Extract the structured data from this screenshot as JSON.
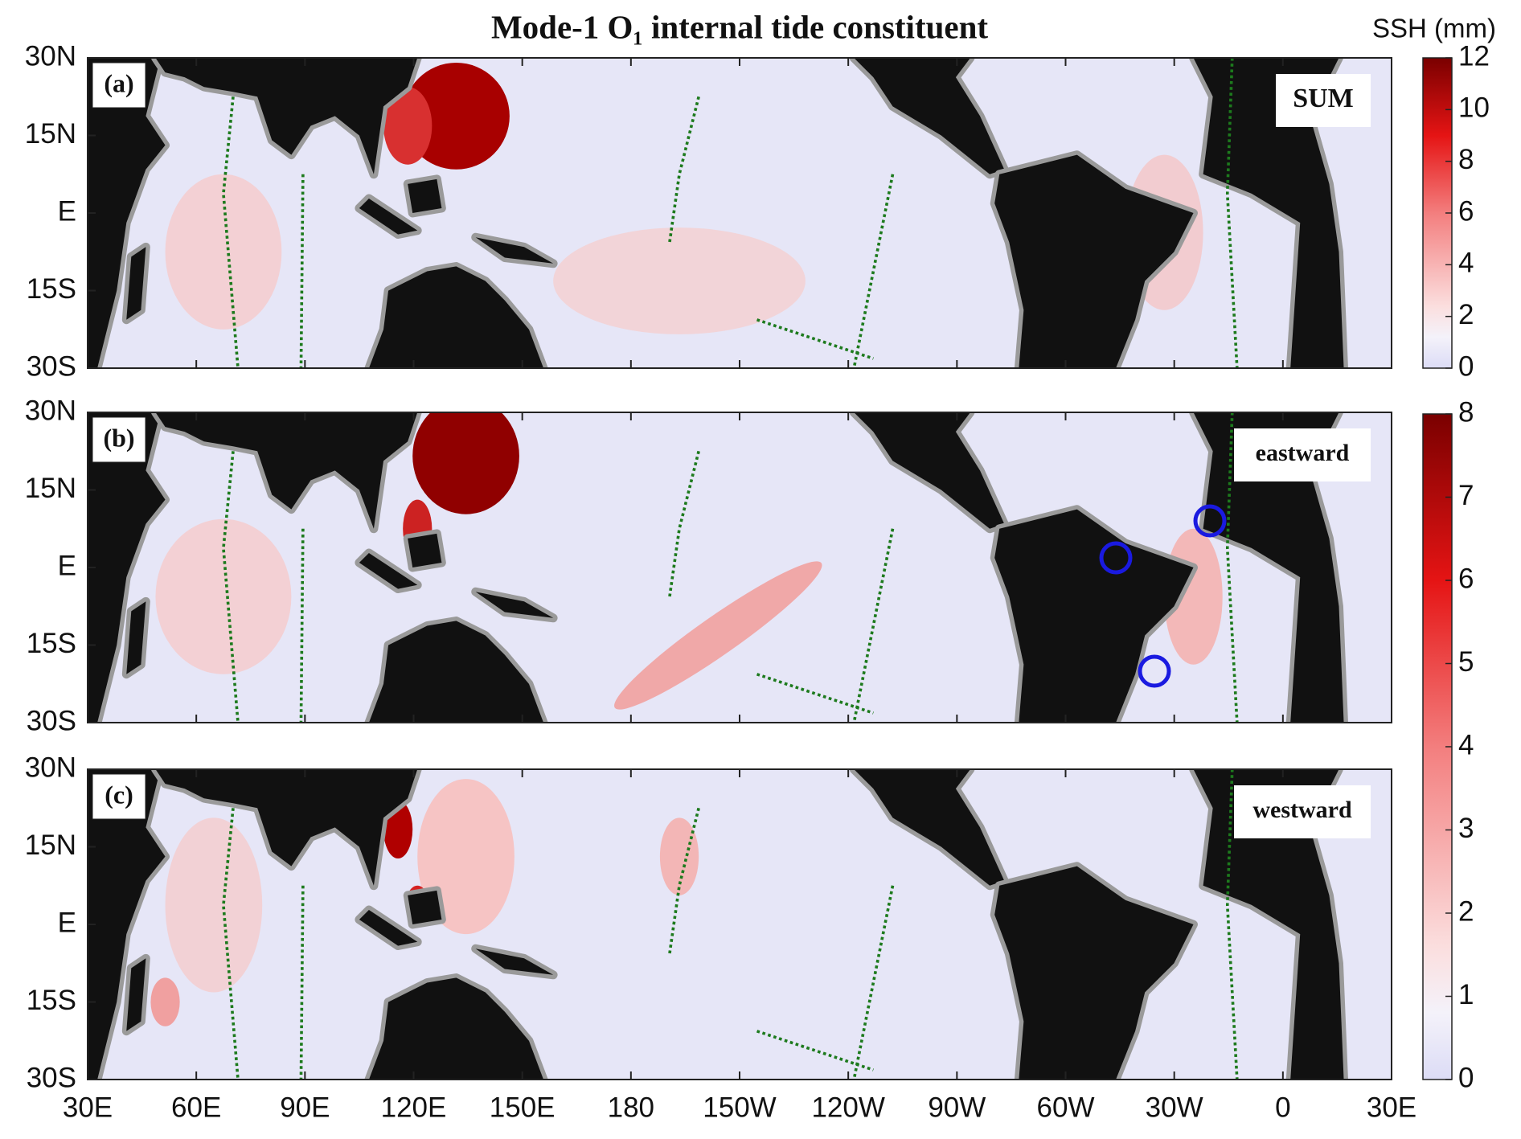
{
  "title": "Mode-1 O₁ internal tide constituent",
  "panels": [
    {
      "label": "(a)",
      "tag": "SUM"
    },
    {
      "label": "(b)",
      "tag": "eastward"
    },
    {
      "label": "(c)",
      "tag": "westward"
    }
  ],
  "map": {
    "xlim": [
      30,
      390
    ],
    "ylim": [
      -30,
      30
    ],
    "xticks": [
      {
        "value": 30,
        "label": "30E"
      },
      {
        "value": 60,
        "label": "60E"
      },
      {
        "value": 90,
        "label": "90E"
      },
      {
        "value": 120,
        "label": "120E"
      },
      {
        "value": 150,
        "label": "150E"
      },
      180,
      {
        "value": 210,
        "label": "150W"
      },
      {
        "value": 240,
        "label": "120W"
      },
      {
        "value": 270,
        "label": "90W"
      },
      {
        "value": 300,
        "label": "60W"
      },
      {
        "value": 330,
        "label": "30W"
      },
      {
        "value": 360,
        "label": "0"
      },
      {
        "value": 390,
        "label": "30E"
      }
    ],
    "yticks": [
      {
        "value": 30,
        "label": "30N"
      },
      {
        "value": 15,
        "label": "15N"
      },
      {
        "value": 0,
        "label": "E"
      },
      {
        "value": -15,
        "label": "15S"
      },
      {
        "value": -30,
        "label": "30S"
      }
    ]
  },
  "colorbars": [
    {
      "label": "SSH (mm)",
      "lim": [
        0,
        12
      ],
      "ticks": [
        0,
        2,
        4,
        6,
        8,
        10,
        12
      ]
    },
    {
      "lim": [
        0,
        8
      ],
      "ticks": [
        0,
        1,
        2,
        3,
        4,
        5,
        6,
        7,
        8
      ]
    }
  ]
}
